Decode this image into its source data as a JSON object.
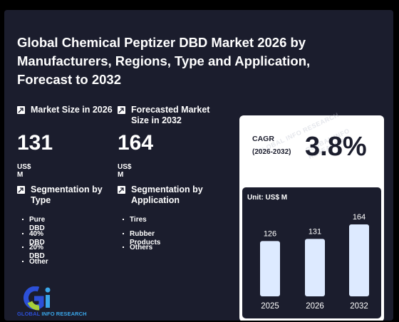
{
  "report": {
    "title": "Global Chemical Peptizer DBD Market 2026 by Manufacturers, Regions, Type and Application, Forecast to 2032"
  },
  "stats": {
    "market_size": {
      "label": "Market Size in 2026",
      "value": "131",
      "unit": "US$ M"
    },
    "forecast": {
      "label": "Forecasted Market Size in 2032",
      "value": "164",
      "unit": "US$ M"
    }
  },
  "segments": {
    "type": {
      "label": "Segmentation by Type",
      "items": [
        "Pure DBD",
        "40% DBD",
        "20% DBD",
        "Other"
      ]
    },
    "application": {
      "label": "Segmentation by Application",
      "items": [
        "Tires",
        "Rubber Products",
        "Others"
      ]
    }
  },
  "cagr": {
    "label": "CAGR",
    "period": "(2026-2032)",
    "value": "3.8%"
  },
  "chart_data": {
    "type": "bar",
    "title": "",
    "unit_label": "Unit: US$ M",
    "categories": [
      "2025",
      "2026",
      "2032"
    ],
    "values": [
      126,
      131,
      164
    ],
    "xlabel": "",
    "ylabel": "",
    "ylim": [
      0,
      180
    ],
    "bar_color": "#ddeaff",
    "label_color": "#ffffff"
  },
  "logo": {
    "brand_a": "GLOBAL ",
    "brand_b": "INFO RESEARCH",
    "mark": "Gi"
  },
  "watermark": {
    "text": "GLOBAL INFO RESEARCH"
  },
  "colors": {
    "background": "#1b1d2d",
    "accent_blue": "#2c50d8",
    "accent_light_blue": "#3aa7ea",
    "accent_green": "#a6cf3a"
  }
}
